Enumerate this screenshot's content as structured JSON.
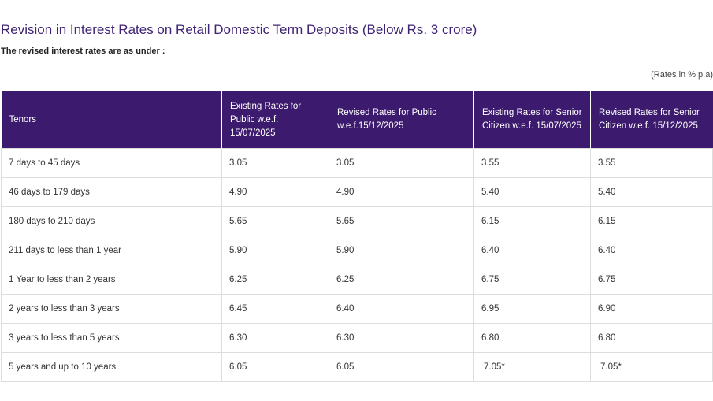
{
  "heading": {
    "title": "Revision in Interest Rates on Retail Domestic Term Deposits (Below Rs. 3 crore)",
    "subtitle": "The revised interest rates are as under :",
    "units_note": "(Rates in % p.a)"
  },
  "colors": {
    "title": "#3f2375",
    "header_bg": "#3c1a6e",
    "header_text": "#ffffff",
    "border": "#dddddd"
  },
  "table": {
    "headers": [
      "Tenors",
      "Existing Rates for Public w.e.f. 15/07/2025",
      "Revised Rates for Public w.e.f.15/12/2025",
      "Existing Rates for Senior Citizen w.e.f. 15/07/2025",
      "Revised Rates for Senior Citizen  w.e.f. 15/12/2025"
    ],
    "rows": [
      [
        "7 days to 45 days",
        "3.05",
        "3.05",
        "3.55",
        "3.55"
      ],
      [
        "46 days to 179 days",
        "4.90",
        "4.90",
        "5.40",
        "5.40"
      ],
      [
        "180 days to 210 days",
        "5.65",
        "5.65",
        "6.15",
        "6.15"
      ],
      [
        "211 days to less than 1 year",
        "5.90",
        "5.90",
        "6.40",
        "6.40"
      ],
      [
        "1 Year to less than 2 years",
        "6.25",
        "6.25",
        "6.75",
        "6.75"
      ],
      [
        "2 years to less than 3 years",
        "6.45",
        "6.40",
        "6.95",
        "6.90"
      ],
      [
        "3 years to less than 5 years",
        "6.30",
        "6.30",
        "6.80",
        "6.80"
      ],
      [
        "5 years and up to 10 years",
        "6.05",
        "6.05",
        "7.05*",
        "7.05*"
      ]
    ]
  }
}
